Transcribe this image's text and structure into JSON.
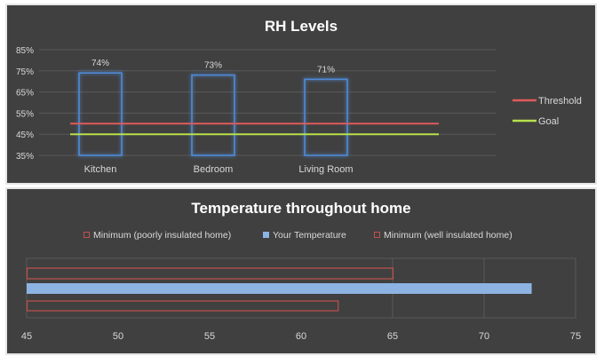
{
  "chart_data": [
    {
      "type": "bar",
      "title": "RH Levels",
      "xlabel": "",
      "ylabel": "",
      "categories": [
        "Kitchen",
        "Bedroom",
        "Living Room"
      ],
      "values": [
        74,
        73,
        71
      ],
      "data_labels": [
        "74%",
        "73%",
        "71%"
      ],
      "ylim": [
        35,
        85
      ],
      "yticks": [
        "35%",
        "45%",
        "55%",
        "65%",
        "75%",
        "85%"
      ],
      "grid": true,
      "lines": [
        {
          "name": "Threshold",
          "value": 50,
          "color": "#e05a5a"
        },
        {
          "name": "Goal",
          "value": 45,
          "color": "#b7e04a"
        }
      ],
      "bar_style": "outline",
      "bar_color": "#4f8ad6",
      "legend": "right"
    },
    {
      "type": "bar",
      "orientation": "horizontal",
      "title": "Temperature throughout  home",
      "xlabel": "",
      "ylabel": "",
      "series": [
        {
          "name": "Minimum (poorly insulated home)",
          "value": 65,
          "style": "outline",
          "color": "#c0504d"
        },
        {
          "name": "Your Temperature",
          "value": 72.6,
          "style": "fill",
          "color": "#8db3e2"
        },
        {
          "name": "Minimum (well insulated home)",
          "value": 62,
          "style": "outline",
          "color": "#c0504d"
        }
      ],
      "xlim": [
        45,
        75
      ],
      "xticks": [
        "45",
        "50",
        "55",
        "60",
        "65",
        "70",
        "75"
      ],
      "grid": true,
      "legend": "top"
    }
  ]
}
